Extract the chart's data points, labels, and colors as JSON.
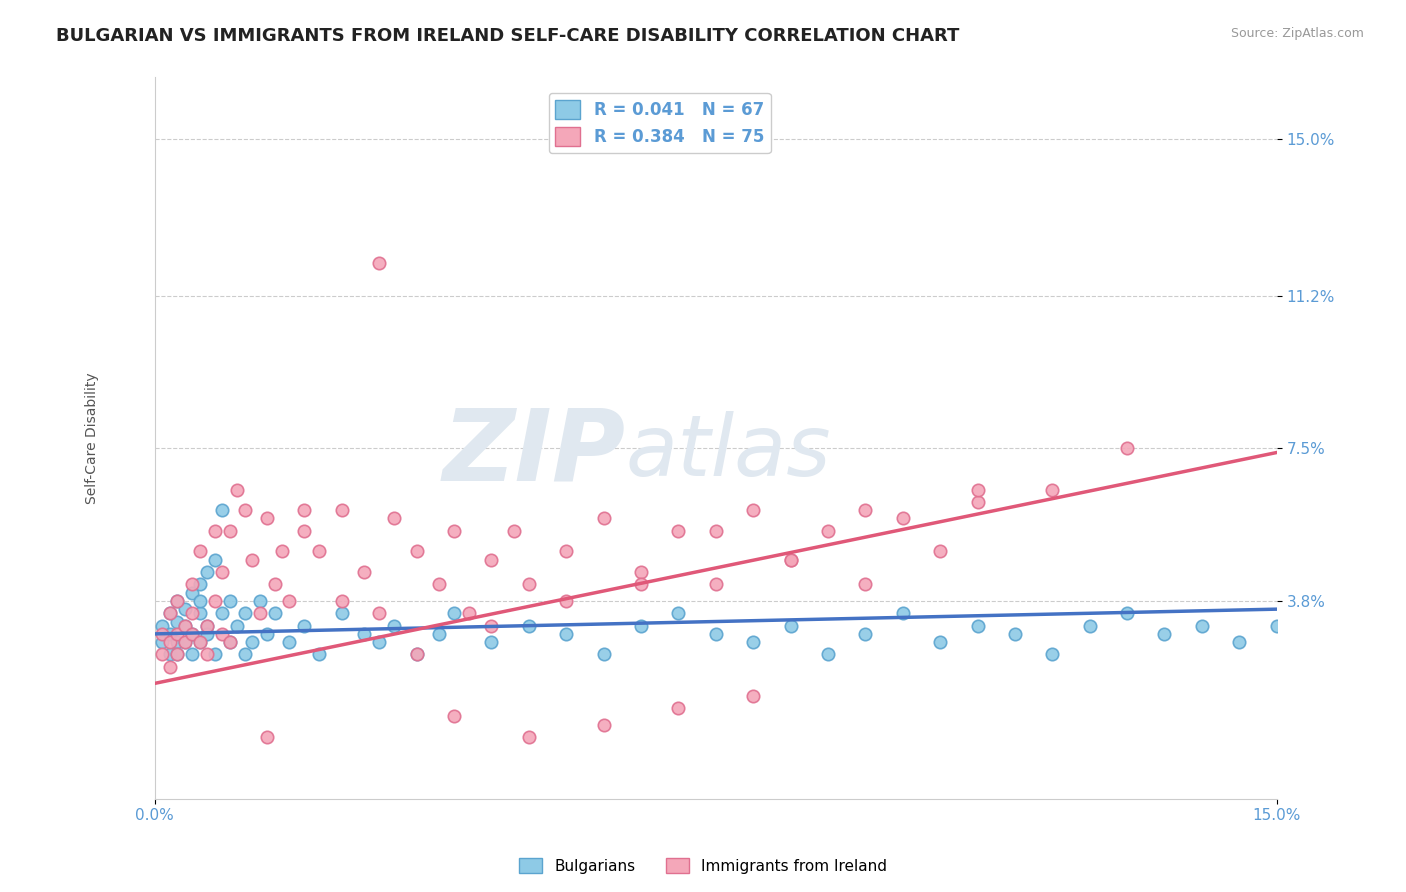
{
  "title": "BULGARIAN VS IMMIGRANTS FROM IRELAND SELF-CARE DISABILITY CORRELATION CHART",
  "source": "Source: ZipAtlas.com",
  "ylabel": "Self-Care Disability",
  "yticklabels": [
    "3.8%",
    "7.5%",
    "11.2%",
    "15.0%"
  ],
  "ytick_values": [
    0.038,
    0.075,
    0.112,
    0.15
  ],
  "xlim": [
    0.0,
    0.15
  ],
  "ylim": [
    -0.01,
    0.165
  ],
  "xticks": [
    0.0,
    0.15
  ],
  "xticklabels": [
    "0.0%",
    "15.0%"
  ],
  "legend_entries": [
    {
      "label": "R = 0.041   N = 67",
      "color": "#8ECAE6"
    },
    {
      "label": "R = 0.384   N = 75",
      "color": "#F4A7B9"
    }
  ],
  "series1_name": "Bulgarians",
  "series2_name": "Immigrants from Ireland",
  "series1_color": "#8ECAE6",
  "series2_color": "#F4A7B9",
  "series1_edge_color": "#5BA4CF",
  "series2_edge_color": "#E07090",
  "trendline1_color": "#4472C4",
  "trendline2_color": "#E05878",
  "background_color": "#FFFFFF",
  "grid_color": "#CCCCCC",
  "title_color": "#222222",
  "tick_label_color": "#5B9BD5",
  "title_fontsize": 13,
  "axis_label_fontsize": 10,
  "tick_fontsize": 11,
  "series1_x": [
    0.001,
    0.001,
    0.002,
    0.002,
    0.002,
    0.003,
    0.003,
    0.003,
    0.003,
    0.004,
    0.004,
    0.004,
    0.005,
    0.005,
    0.005,
    0.006,
    0.006,
    0.006,
    0.006,
    0.007,
    0.007,
    0.007,
    0.008,
    0.008,
    0.009,
    0.009,
    0.01,
    0.01,
    0.011,
    0.012,
    0.012,
    0.013,
    0.014,
    0.015,
    0.016,
    0.018,
    0.02,
    0.022,
    0.025,
    0.028,
    0.03,
    0.032,
    0.035,
    0.038,
    0.04,
    0.045,
    0.05,
    0.055,
    0.06,
    0.065,
    0.07,
    0.075,
    0.08,
    0.085,
    0.09,
    0.095,
    0.1,
    0.105,
    0.11,
    0.115,
    0.12,
    0.125,
    0.13,
    0.135,
    0.14,
    0.145,
    0.15
  ],
  "series1_y": [
    0.028,
    0.032,
    0.025,
    0.035,
    0.03,
    0.028,
    0.033,
    0.038,
    0.025,
    0.032,
    0.036,
    0.028,
    0.04,
    0.03,
    0.025,
    0.035,
    0.042,
    0.028,
    0.038,
    0.032,
    0.045,
    0.03,
    0.048,
    0.025,
    0.06,
    0.035,
    0.038,
    0.028,
    0.032,
    0.025,
    0.035,
    0.028,
    0.038,
    0.03,
    0.035,
    0.028,
    0.032,
    0.025,
    0.035,
    0.03,
    0.028,
    0.032,
    0.025,
    0.03,
    0.035,
    0.028,
    0.032,
    0.03,
    0.025,
    0.032,
    0.035,
    0.03,
    0.028,
    0.032,
    0.025,
    0.03,
    0.035,
    0.028,
    0.032,
    0.03,
    0.025,
    0.032,
    0.035,
    0.03,
    0.032,
    0.028,
    0.032
  ],
  "series2_x": [
    0.001,
    0.001,
    0.002,
    0.002,
    0.002,
    0.003,
    0.003,
    0.003,
    0.004,
    0.004,
    0.005,
    0.005,
    0.005,
    0.006,
    0.006,
    0.007,
    0.007,
    0.008,
    0.008,
    0.009,
    0.009,
    0.01,
    0.01,
    0.011,
    0.012,
    0.013,
    0.014,
    0.015,
    0.016,
    0.017,
    0.018,
    0.02,
    0.022,
    0.025,
    0.028,
    0.03,
    0.032,
    0.035,
    0.038,
    0.04,
    0.042,
    0.045,
    0.048,
    0.05,
    0.055,
    0.06,
    0.065,
    0.07,
    0.075,
    0.08,
    0.085,
    0.09,
    0.095,
    0.1,
    0.105,
    0.11,
    0.12,
    0.04,
    0.05,
    0.06,
    0.07,
    0.08,
    0.03,
    0.02,
    0.015,
    0.025,
    0.035,
    0.045,
    0.055,
    0.065,
    0.075,
    0.085,
    0.095,
    0.11,
    0.13
  ],
  "series2_y": [
    0.03,
    0.025,
    0.028,
    0.035,
    0.022,
    0.03,
    0.025,
    0.038,
    0.032,
    0.028,
    0.035,
    0.03,
    0.042,
    0.028,
    0.05,
    0.032,
    0.025,
    0.038,
    0.055,
    0.03,
    0.045,
    0.055,
    0.028,
    0.065,
    0.06,
    0.048,
    0.035,
    0.058,
    0.042,
    0.05,
    0.038,
    0.055,
    0.05,
    0.06,
    0.045,
    0.035,
    0.058,
    0.05,
    0.042,
    0.055,
    0.035,
    0.048,
    0.055,
    0.042,
    0.05,
    0.058,
    0.045,
    0.055,
    0.042,
    0.06,
    0.048,
    0.055,
    0.042,
    0.058,
    0.05,
    0.062,
    0.065,
    0.01,
    0.005,
    0.008,
    0.012,
    0.015,
    0.12,
    0.06,
    0.005,
    0.038,
    0.025,
    0.032,
    0.038,
    0.042,
    0.055,
    0.048,
    0.06,
    0.065,
    0.075
  ],
  "trendline1_x": [
    0.0,
    0.15
  ],
  "trendline1_y": [
    0.03,
    0.036
  ],
  "trendline2_x": [
    0.0,
    0.15
  ],
  "trendline2_y": [
    0.018,
    0.074
  ],
  "watermark_text": "ZIP",
  "watermark_text2": "atlas",
  "watermark_color": "#E0E8F0",
  "watermark_fontsize": 72
}
